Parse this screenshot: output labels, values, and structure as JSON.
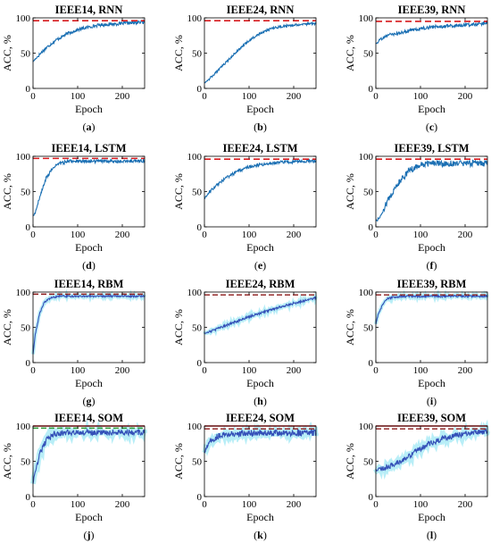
{
  "colors": {
    "curve": "#1a6fb3",
    "curve_dark": "#3450b8",
    "band": "#7ee0f0",
    "target": "#d7191c",
    "target_dark": "#8b1a1a",
    "target_green": "#2e9b3a",
    "axes": "#000000"
  },
  "chart_data": [
    {
      "type": "line",
      "title": "IEEE14, RNN",
      "xlabel": "Epoch",
      "ylabel": "ACC, %",
      "xlim": [
        0,
        250
      ],
      "ylim": [
        0,
        100
      ],
      "xticks": [
        "0",
        "100",
        "200"
      ],
      "yticks": [
        "0",
        "50",
        "100"
      ],
      "label": "(a)",
      "series": [
        {
          "x": [
            0,
            10,
            25,
            50,
            75,
            100,
            125,
            150,
            175,
            200,
            225,
            250
          ],
          "values": [
            38,
            45,
            55,
            68,
            77,
            83,
            87,
            90,
            91,
            92,
            93,
            94
          ]
        }
      ],
      "target_line": 96
    },
    {
      "type": "line",
      "title": "IEEE24, RNN",
      "xlabel": "Epoch",
      "ylabel": "ACC, %",
      "xlim": [
        0,
        250
      ],
      "ylim": [
        0,
        100
      ],
      "xticks": [
        "0",
        "100",
        "200"
      ],
      "yticks": [
        "0",
        "50",
        "100"
      ],
      "label": "(b)",
      "series": [
        {
          "x": [
            0,
            10,
            25,
            50,
            75,
            100,
            125,
            150,
            175,
            200,
            225,
            250
          ],
          "values": [
            8,
            13,
            22,
            38,
            54,
            68,
            78,
            85,
            88,
            90,
            91,
            92
          ]
        }
      ],
      "target_line": 96
    },
    {
      "type": "line",
      "title": "IEEE39, RNN",
      "xlabel": "Epoch",
      "ylabel": "ACC, %",
      "xlim": [
        0,
        250
      ],
      "ylim": [
        0,
        100
      ],
      "xticks": [
        "0",
        "100",
        "200"
      ],
      "yticks": [
        "0",
        "50",
        "100"
      ],
      "label": "(c)",
      "series": [
        {
          "x": [
            0,
            10,
            25,
            50,
            75,
            100,
            125,
            150,
            175,
            200,
            225,
            250
          ],
          "values": [
            62,
            70,
            75,
            78,
            82,
            85,
            87,
            88,
            89,
            90,
            91,
            92
          ]
        }
      ],
      "target_line": 95
    },
    {
      "type": "line",
      "title": "IEEE14, LSTM",
      "xlabel": "Epoch",
      "ylabel": "ACC, %",
      "xlim": [
        0,
        250
      ],
      "ylim": [
        0,
        100
      ],
      "xticks": [
        "0",
        "100",
        "200"
      ],
      "yticks": [
        "0",
        "50",
        "100"
      ],
      "label": "(d)",
      "series": [
        {
          "x": [
            0,
            5,
            15,
            30,
            45,
            60,
            80,
            100,
            150,
            200,
            250
          ],
          "values": [
            15,
            20,
            42,
            70,
            84,
            90,
            93,
            93,
            93,
            93,
            93
          ]
        }
      ],
      "target_line": 97
    },
    {
      "type": "line",
      "title": "IEEE24, LSTM",
      "xlabel": "Epoch",
      "ylabel": "ACC, %",
      "xlim": [
        0,
        250
      ],
      "ylim": [
        0,
        100
      ],
      "xticks": [
        "0",
        "100",
        "200"
      ],
      "yticks": [
        "0",
        "50",
        "100"
      ],
      "label": "(e)",
      "series": [
        {
          "x": [
            0,
            10,
            25,
            50,
            75,
            100,
            125,
            150,
            175,
            200,
            225,
            250
          ],
          "values": [
            40,
            48,
            58,
            70,
            79,
            85,
            88,
            90,
            92,
            92,
            93,
            93
          ]
        }
      ],
      "target_line": 96
    },
    {
      "type": "line",
      "title": "IEEE39, LSTM",
      "xlabel": "Epoch",
      "ylabel": "ACC, %",
      "xlim": [
        0,
        250
      ],
      "ylim": [
        0,
        100
      ],
      "xticks": [
        "0",
        "100",
        "200"
      ],
      "yticks": [
        "0",
        "50",
        "100"
      ],
      "label": "(f)",
      "series": [
        {
          "x": [
            0,
            10,
            25,
            50,
            75,
            100,
            125,
            150,
            200,
            250
          ],
          "values": [
            8,
            15,
            35,
            62,
            80,
            88,
            90,
            90,
            90,
            90
          ]
        }
      ],
      "target_line": 96
    },
    {
      "type": "line",
      "title": "IEEE14, RBM",
      "xlabel": "Epoch",
      "ylabel": "ACC, %",
      "xlim": [
        0,
        250
      ],
      "ylim": [
        0,
        100
      ],
      "xticks": [
        "0",
        "100",
        "200"
      ],
      "yticks": [
        "0",
        "50",
        "100"
      ],
      "label": "(g)",
      "series": [
        {
          "x": [
            0,
            5,
            15,
            25,
            40,
            60,
            100,
            150,
            200,
            250
          ],
          "values": [
            12,
            40,
            70,
            85,
            92,
            94,
            94,
            94,
            94,
            94
          ]
        }
      ],
      "target_line": 97
    },
    {
      "type": "line",
      "title": "IEEE24, RBM",
      "xlabel": "Epoch",
      "ylabel": "ACC, %",
      "xlim": [
        0,
        250
      ],
      "ylim": [
        0,
        100
      ],
      "xticks": [
        "0",
        "100",
        "200"
      ],
      "yticks": [
        "0",
        "50",
        "100"
      ],
      "label": "(h)",
      "series": [
        {
          "x": [
            0,
            25,
            50,
            75,
            100,
            125,
            150,
            175,
            200,
            225,
            250
          ],
          "values": [
            41,
            47,
            53,
            59,
            65,
            70,
            75,
            80,
            84,
            88,
            92
          ]
        }
      ],
      "target_line": 96
    },
    {
      "type": "line",
      "title": "IEEE39, RBM",
      "xlabel": "Epoch",
      "ylabel": "ACC, %",
      "xlim": [
        0,
        250
      ],
      "ylim": [
        0,
        100
      ],
      "xticks": [
        "0",
        "100",
        "200"
      ],
      "yticks": [
        "0",
        "50",
        "100"
      ],
      "label": "(i)",
      "series": [
        {
          "x": [
            0,
            5,
            15,
            25,
            40,
            60,
            100,
            150,
            200,
            250
          ],
          "values": [
            55,
            68,
            82,
            90,
            93,
            94,
            94,
            94,
            94,
            94
          ]
        }
      ],
      "target_line": 96
    },
    {
      "type": "line",
      "title": "IEEE14, SOM",
      "xlabel": "Epoch",
      "ylabel": "ACC, %",
      "xlim": [
        0,
        250
      ],
      "ylim": [
        0,
        100
      ],
      "xticks": [
        "0",
        "100",
        "200"
      ],
      "yticks": [
        "0",
        "50",
        "100"
      ],
      "label": "(j)",
      "series": [
        {
          "x": [
            0,
            5,
            15,
            30,
            45,
            60,
            100,
            150,
            200,
            250
          ],
          "values": [
            20,
            35,
            60,
            80,
            88,
            90,
            91,
            91,
            91,
            91
          ]
        }
      ],
      "target_line": 97
    },
    {
      "type": "line",
      "title": "IEEE24, SOM",
      "xlabel": "Epoch",
      "ylabel": "ACC, %",
      "xlim": [
        0,
        250
      ],
      "ylim": [
        0,
        100
      ],
      "xticks": [
        "0",
        "100",
        "200"
      ],
      "yticks": [
        "0",
        "50",
        "100"
      ],
      "label": "(k)",
      "series": [
        {
          "x": [
            0,
            5,
            15,
            30,
            45,
            60,
            100,
            150,
            200,
            250
          ],
          "values": [
            60,
            70,
            80,
            86,
            88,
            89,
            90,
            90,
            90,
            90
          ]
        }
      ],
      "target_line": 96
    },
    {
      "type": "line",
      "title": "IEEE39, SOM",
      "xlabel": "Epoch",
      "ylabel": "ACC, %",
      "xlim": [
        0,
        250
      ],
      "ylim": [
        0,
        100
      ],
      "xticks": [
        "0",
        "100",
        "200"
      ],
      "yticks": [
        "0",
        "50",
        "100"
      ],
      "label": "(l)",
      "series": [
        {
          "x": [
            0,
            25,
            50,
            75,
            100,
            125,
            150,
            175,
            200,
            225,
            250
          ],
          "values": [
            38,
            42,
            48,
            58,
            68,
            76,
            82,
            86,
            89,
            91,
            92
          ]
        }
      ],
      "target_line": 96
    }
  ]
}
